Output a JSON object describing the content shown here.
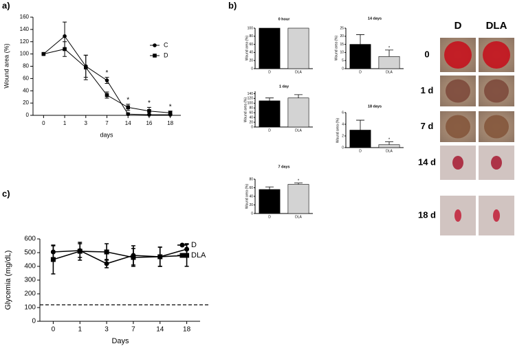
{
  "panel_labels": [
    "a)",
    "b)",
    "c)"
  ],
  "chart_data": [
    {
      "type": "line",
      "xlabel": "days",
      "ylabel": "Wound area (%)",
      "categories": [
        "0",
        "1",
        "3",
        "7",
        "14",
        "16",
        "18"
      ],
      "ylim": [
        0,
        160
      ],
      "yticks": [
        0,
        20,
        40,
        60,
        80,
        100,
        120,
        140,
        160
      ],
      "series": [
        {
          "name": "C",
          "marker": "circle",
          "color": "#000000",
          "values": [
            100,
            129,
            80,
            57,
            2,
            1,
            1
          ],
          "errors": [
            0,
            23,
            18,
            5,
            2,
            1,
            1
          ]
        },
        {
          "name": "D",
          "marker": "square",
          "color": "#000000",
          "values": [
            100,
            108,
            78,
            33,
            13,
            7,
            4
          ],
          "errors": [
            0,
            12,
            20,
            5,
            5,
            6,
            3
          ]
        }
      ],
      "significance": [
        null,
        null,
        null,
        "*",
        "*",
        "*",
        "*"
      ]
    },
    {
      "type": "bar",
      "title": "0 hour",
      "ylabel": "Wound area (%)",
      "categories": [
        "D",
        "DLA"
      ],
      "values": [
        100,
        100
      ],
      "errors": [
        0,
        0
      ],
      "colors": [
        "#000000",
        "#d3d3d3"
      ],
      "ylim": [
        0,
        100
      ],
      "yticks": [
        0,
        20,
        40,
        60,
        80,
        100
      ],
      "significance": [
        null,
        null
      ]
    },
    {
      "type": "bar",
      "title": "14 days",
      "ylabel": "Wound area (%)",
      "categories": [
        "D",
        "DLA"
      ],
      "values": [
        15,
        7.5
      ],
      "errors": [
        6,
        4
      ],
      "colors": [
        "#000000",
        "#d3d3d3"
      ],
      "ylim": [
        0,
        25
      ],
      "yticks": [
        0,
        5,
        10,
        15,
        20,
        25
      ],
      "significance": [
        null,
        "*"
      ]
    },
    {
      "type": "bar",
      "title": "1 day",
      "ylabel": "Wound area (%)",
      "categories": [
        "D",
        "DLA"
      ],
      "values": [
        110,
        122
      ],
      "errors": [
        12,
        14
      ],
      "colors": [
        "#000000",
        "#d3d3d3"
      ],
      "ylim": [
        0,
        150
      ],
      "yticks": [
        0,
        20,
        40,
        60,
        80,
        100,
        120,
        140
      ],
      "significance": [
        null,
        null
      ]
    },
    {
      "type": "bar",
      "title": "18 days",
      "ylabel": "Wound area (%)",
      "categories": [
        "D",
        "DLA"
      ],
      "values": [
        3,
        0.5
      ],
      "errors": [
        1.7,
        0.5
      ],
      "colors": [
        "#000000",
        "#d3d3d3"
      ],
      "ylim": [
        0,
        6
      ],
      "yticks": [
        0,
        2,
        4,
        6
      ],
      "significance": [
        null,
        "*"
      ]
    },
    {
      "type": "bar",
      "title": "7 days",
      "ylabel": "Wound area (%)",
      "categories": [
        "D",
        "DLA"
      ],
      "values": [
        56,
        68
      ],
      "errors": [
        6,
        3
      ],
      "colors": [
        "#000000",
        "#d3d3d3"
      ],
      "ylim": [
        0,
        80
      ],
      "yticks": [
        0,
        20,
        40,
        60,
        80
      ],
      "significance": [
        null,
        "*"
      ]
    },
    {
      "type": "line",
      "xlabel": "Days",
      "ylabel": "Glycemia (mg/dL)",
      "categories": [
        "0",
        "1",
        "3",
        "7",
        "14",
        "18"
      ],
      "ylim": [
        0,
        600
      ],
      "yticks": [
        0,
        100,
        200,
        300,
        400,
        500,
        600
      ],
      "reference_line": 120,
      "series": [
        {
          "name": "D",
          "marker": "circle",
          "color": "#000000",
          "values": [
            505,
            515,
            420,
            480,
            470,
            525
          ],
          "errors": [
            45,
            50,
            30,
            70,
            70,
            40
          ]
        },
        {
          "name": "DLA",
          "marker": "square",
          "color": "#000000",
          "values": [
            450,
            510,
            505,
            465,
            470,
            480
          ],
          "errors": [
            105,
            65,
            60,
            65,
            70,
            80
          ]
        }
      ]
    }
  ],
  "photo_grid": {
    "columns": [
      "D",
      "DLA"
    ],
    "rows": [
      "0",
      "1 d",
      "7 d",
      "14 d",
      "18 d"
    ]
  }
}
